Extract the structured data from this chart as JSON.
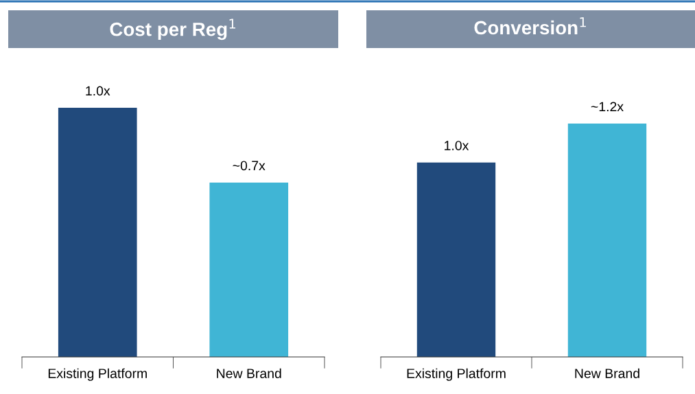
{
  "chart_data": [
    {
      "type": "bar",
      "title": "Cost per Reg$^{1}$",
      "categories": [
        "Existing Platform",
        "New Brand"
      ],
      "values": [
        1.0,
        0.7
      ],
      "colors": [
        "#214a7c",
        "#40b5d5"
      ],
      "value_labels": [
        "1.0x",
        "~0.7x"
      ]
    },
    {
      "type": "bar",
      "title": "Conversion$^{1}$",
      "categories": [
        "Existing Platform",
        "New Brand"
      ],
      "values": [
        1.0,
        1.2
      ],
      "colors": [
        "#214a7c",
        "#40b5d5"
      ],
      "value_labels": [
        "1.0x",
        "~1.2x"
      ]
    }
  ]
}
